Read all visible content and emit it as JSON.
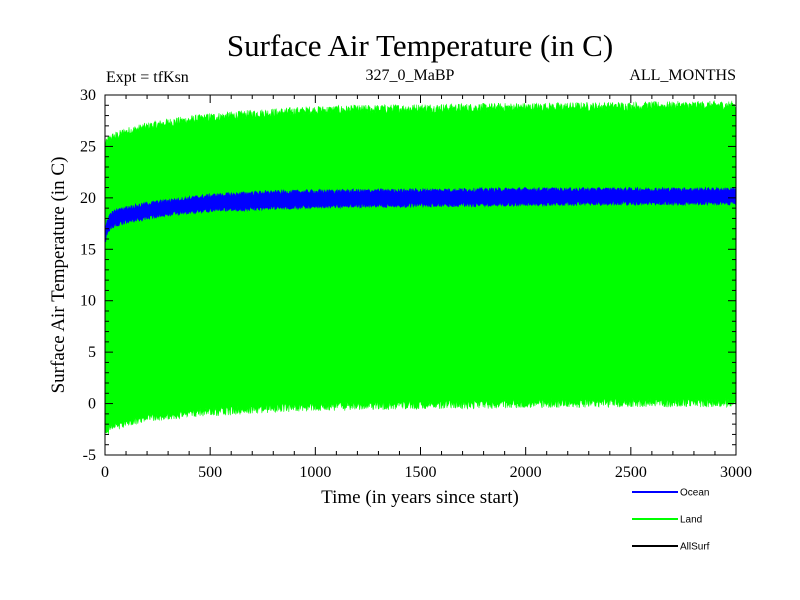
{
  "chart_data": {
    "type": "area",
    "title": "Surface Air Temperature (in C)",
    "subtitle_left": "Expt = tfKsn",
    "subtitle_center": "327_0_MaBP",
    "subtitle_right": "ALL_MONTHS",
    "xlabel": "Time (in years since start)",
    "ylabel": "Surface Air Temperature (in C)",
    "xlim": [
      0,
      3000
    ],
    "ylim": [
      -5,
      30
    ],
    "xticks": [
      0,
      500,
      1000,
      1500,
      2000,
      2500,
      3000
    ],
    "yticks": [
      -5,
      0,
      5,
      10,
      15,
      20,
      25,
      30
    ],
    "legend_position": "bottom-right",
    "series": [
      {
        "name": "Ocean",
        "color": "#0000ff",
        "x": [
          0,
          10,
          25,
          50,
          100,
          200,
          300,
          500,
          750,
          1000,
          1500,
          2000,
          2500,
          3000
        ],
        "upper": [
          16.5,
          17.8,
          18.4,
          18.7,
          19.0,
          19.4,
          19.7,
          20.2,
          20.5,
          20.6,
          20.7,
          20.8,
          20.8,
          20.8
        ],
        "lower": [
          15.5,
          16.6,
          17.1,
          17.4,
          17.7,
          18.1,
          18.4,
          18.8,
          19.0,
          19.2,
          19.3,
          19.4,
          19.5,
          19.5
        ]
      },
      {
        "name": "Land",
        "color": "#00ff00",
        "x": [
          0,
          10,
          25,
          50,
          100,
          200,
          300,
          500,
          750,
          1000,
          1500,
          2000,
          2500,
          3000
        ],
        "upper": [
          25.0,
          25.5,
          25.8,
          26.0,
          26.4,
          26.9,
          27.3,
          27.8,
          28.2,
          28.5,
          28.7,
          28.8,
          28.9,
          29.0
        ],
        "lower": [
          -2.5,
          -2.6,
          -2.4,
          -2.2,
          -1.8,
          -1.4,
          -1.1,
          -0.8,
          -0.5,
          -0.3,
          -0.1,
          0.0,
          0.1,
          0.1
        ]
      },
      {
        "name": "AllSurf",
        "color": "#000000",
        "x": [],
        "upper": [],
        "lower": []
      }
    ]
  }
}
